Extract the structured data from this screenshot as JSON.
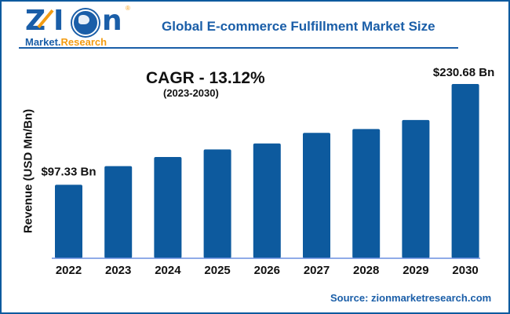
{
  "logo": {
    "brand": "Zion",
    "brand_left": "Z",
    "brand_mid": "I",
    "brand_right": "n",
    "sub_left": "Market.",
    "sub_right": "Research",
    "registered": "®"
  },
  "colors": {
    "bar": "#0d5a9e",
    "title": "#1a5ea8",
    "frame": "#0d5a9e",
    "baseline": "#6b8fe0",
    "logo_accent": "#f39c12"
  },
  "annotation": {
    "cagr": "CAGR - 13.12%",
    "period": "(2023-2030)"
  },
  "source": "Source: zionmarketresearch.com",
  "chart_data": {
    "type": "bar",
    "title": "Global E-commerce Fulfillment Market Size",
    "xlabel": "",
    "ylabel": "Revenue (USD Mn/Bn)",
    "categories": [
      "2022",
      "2023",
      "2024",
      "2025",
      "2026",
      "2027",
      "2028",
      "2029",
      "2030"
    ],
    "values": [
      97.33,
      122,
      134,
      144,
      152,
      166,
      171,
      183,
      230.68
    ],
    "ylim": [
      0,
      240
    ],
    "grid": false,
    "data_labels": [
      {
        "category": "2022",
        "text": "$97.33 Bn"
      },
      {
        "category": "2030",
        "text": "$230.68 Bn"
      }
    ]
  }
}
